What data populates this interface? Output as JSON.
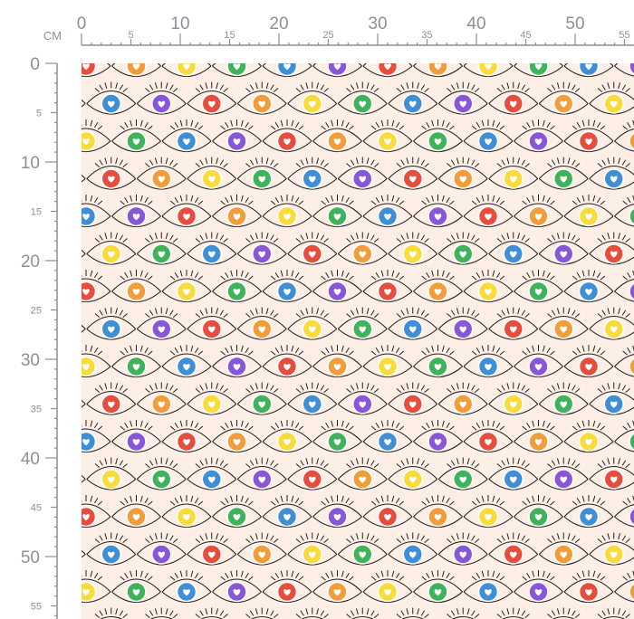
{
  "ruler": {
    "unit_label": "CM",
    "top_major_labels": [
      "0",
      "10",
      "20",
      "30",
      "40",
      "50"
    ],
    "top_minor_labels": [
      "5",
      "15",
      "25",
      "35",
      "45",
      "55"
    ],
    "left_major_labels": [
      "0",
      "10",
      "20",
      "30",
      "40",
      "50"
    ],
    "left_minor_labels": [
      "5",
      "15",
      "25",
      "35",
      "45",
      "55"
    ],
    "color": "#8a9097"
  },
  "fabric": {
    "background_color": "#fdeee6",
    "line_color": "#222222",
    "eye_colors": [
      "#e74c3c",
      "#f39c3a",
      "#f9dc3a",
      "#3fb35a",
      "#3e8fd6",
      "#8a56d8"
    ],
    "icon": "heart-eye-icon"
  }
}
